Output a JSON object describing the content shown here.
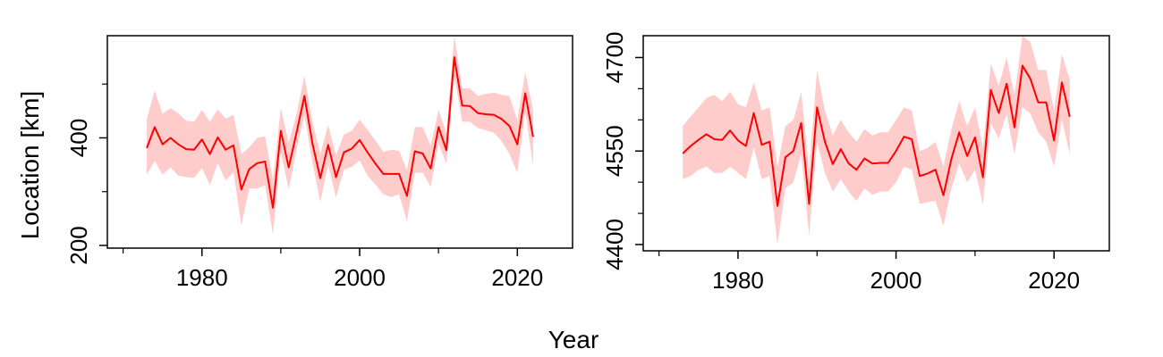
{
  "figure": {
    "xlabel": "Year",
    "ylabel": "Location [km]"
  },
  "chart_data": [
    {
      "type": "line",
      "title": "",
      "xlabel": "Year",
      "ylabel": "Location [km]",
      "xlim": [
        1968,
        2027
      ],
      "ylim": [
        195,
        590
      ],
      "xticks": [
        1980,
        2000,
        2020
      ],
      "xticks_minor": [
        1970,
        1990,
        2010
      ],
      "yticks": [
        200,
        400
      ],
      "yticks_minor": [
        300,
        500
      ],
      "line_color": "#ff0000",
      "band_color": "#ffcccc",
      "grid": false,
      "series": [
        {
          "x": [
            1973,
            1974,
            1975,
            1976,
            1977,
            1978,
            1979,
            1980,
            1981,
            1982,
            1983,
            1984,
            1985,
            1986,
            1987,
            1988,
            1989,
            1990,
            1991,
            1992,
            1993,
            1994,
            1995,
            1996,
            1997,
            1998,
            1999,
            2000,
            2001,
            2002,
            2003,
            2004,
            2005,
            2006,
            2007,
            2008,
            2009,
            2010,
            2011,
            2012,
            2013,
            2014,
            2015,
            2016,
            2017,
            2018,
            2019,
            2020,
            2021,
            2022
          ],
          "y": [
            381,
            420,
            388,
            400,
            388,
            379,
            378,
            397,
            370,
            401,
            378,
            386,
            304,
            342,
            353,
            356,
            270,
            413,
            345,
            410,
            478,
            390,
            325,
            387,
            327,
            373,
            380,
            396,
            373,
            352,
            333,
            333,
            333,
            292,
            375,
            371,
            343,
            420,
            377,
            550,
            460,
            459,
            446,
            444,
            443,
            435,
            422,
            388,
            483,
            402
          ],
          "lower": [
            332,
            357,
            332,
            345,
            330,
            327,
            326,
            344,
            312,
            353,
            321,
            336,
            237,
            306,
            306,
            312,
            220,
            374,
            304,
            378,
            442,
            355,
            281,
            350,
            289,
            341,
            346,
            358,
            330,
            313,
            295,
            290,
            295,
            245,
            335,
            335,
            309,
            389,
            352,
            515,
            430,
            430,
            418,
            414,
            410,
            394,
            370,
            335,
            450,
            348
          ],
          "upper": [
            435,
            488,
            445,
            455,
            446,
            432,
            430,
            452,
            430,
            453,
            436,
            443,
            370,
            382,
            400,
            403,
            323,
            456,
            391,
            445,
            516,
            431,
            370,
            424,
            368,
            406,
            413,
            434,
            415,
            395,
            374,
            378,
            376,
            340,
            420,
            420,
            385,
            452,
            409,
            590,
            492,
            492,
            478,
            482,
            484,
            480,
            478,
            433,
            522,
            452
          ]
        }
      ]
    },
    {
      "type": "line",
      "title": "",
      "xlabel": "Year",
      "ylabel": "",
      "xlim": [
        1968,
        2027
      ],
      "ylim": [
        4390,
        4735
      ],
      "xticks": [
        1980,
        2000,
        2020
      ],
      "xticks_minor": [
        1970,
        1990,
        2010
      ],
      "yticks": [
        4400,
        4550,
        4700
      ],
      "yticks_minor": [
        4450,
        4500,
        4600,
        4650
      ],
      "line_color": "#ff0000",
      "band_color": "#ffcccc",
      "grid": false,
      "series": [
        {
          "x": [
            1973,
            1974,
            1975,
            1976,
            1977,
            1978,
            1979,
            1980,
            1981,
            1982,
            1983,
            1984,
            1985,
            1986,
            1987,
            1988,
            1989,
            1990,
            1991,
            1992,
            1993,
            1994,
            1995,
            1996,
            1997,
            1998,
            1999,
            2000,
            2001,
            2002,
            2003,
            2004,
            2005,
            2006,
            2007,
            2008,
            2009,
            2010,
            2011,
            2012,
            2013,
            2014,
            2015,
            2016,
            2017,
            2018,
            2019,
            2020,
            2021,
            2022
          ],
          "y": [
            4546,
            4558,
            4568,
            4577,
            4569,
            4568,
            4583,
            4567,
            4558,
            4611,
            4560,
            4565,
            4462,
            4540,
            4550,
            4595,
            4465,
            4620,
            4565,
            4529,
            4553,
            4530,
            4520,
            4538,
            4530,
            4531,
            4531,
            4550,
            4573,
            4569,
            4510,
            4514,
            4520,
            4479,
            4537,
            4580,
            4542,
            4572,
            4508,
            4648,
            4611,
            4658,
            4588,
            4687,
            4666,
            4628,
            4628,
            4567,
            4660,
            4605
          ],
          "lower": [
            4505,
            4510,
            4520,
            4525,
            4515,
            4515,
            4525,
            4515,
            4505,
            4555,
            4505,
            4510,
            4400,
            4490,
            4500,
            4545,
            4415,
            4565,
            4515,
            4485,
            4505,
            4485,
            4470,
            4490,
            4480,
            4485,
            4485,
            4500,
            4525,
            4520,
            4465,
            4468,
            4470,
            4430,
            4490,
            4530,
            4500,
            4520,
            4465,
            4595,
            4570,
            4610,
            4545,
            4620,
            4610,
            4580,
            4565,
            4525,
            4600,
            4545
          ],
          "upper": [
            4590,
            4605,
            4620,
            4635,
            4640,
            4630,
            4645,
            4625,
            4620,
            4660,
            4615,
            4620,
            4525,
            4590,
            4600,
            4645,
            4520,
            4680,
            4615,
            4575,
            4600,
            4580,
            4565,
            4585,
            4575,
            4580,
            4580,
            4600,
            4620,
            4615,
            4550,
            4555,
            4565,
            4525,
            4585,
            4630,
            4590,
            4620,
            4555,
            4690,
            4655,
            4700,
            4640,
            4735,
            4725,
            4680,
            4680,
            4615,
            4705,
            4665
          ]
        }
      ]
    }
  ]
}
